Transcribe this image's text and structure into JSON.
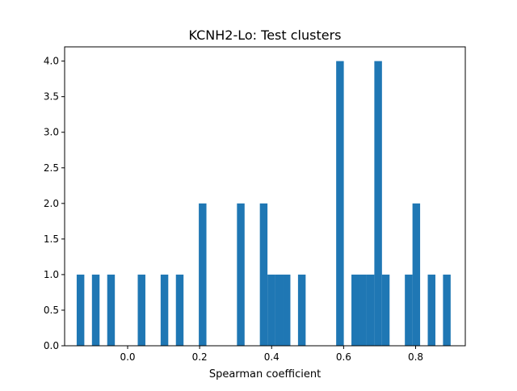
{
  "chart_data": {
    "type": "bar",
    "title": "KCNH2-Lo: Test clusters",
    "xlabel": "Spearman coefficient",
    "ylabel": "",
    "xlim": [
      -0.175,
      0.938
    ],
    "ylim": [
      0,
      4.2
    ],
    "xticks": [
      0.0,
      0.2,
      0.4,
      0.6,
      0.8
    ],
    "xtick_labels": [
      "0.0",
      "0.2",
      "0.4",
      "0.6",
      "0.8"
    ],
    "yticks": [
      0.0,
      0.5,
      1.0,
      1.5,
      2.0,
      2.5,
      3.0,
      3.5,
      4.0
    ],
    "ytick_labels": [
      "0.0",
      "0.5",
      "1.0",
      "1.5",
      "2.0",
      "2.5",
      "3.0",
      "3.5",
      "4.0"
    ],
    "bar_width": 0.0212,
    "bin_left_edges": [
      -0.1415,
      -0.0991,
      -0.0567,
      0.0281,
      0.0917,
      0.1341,
      0.1977,
      0.3037,
      0.3673,
      0.3885,
      0.4097,
      0.4309,
      0.4733,
      0.5793,
      0.6217,
      0.6429,
      0.6641,
      0.6853,
      0.7065,
      0.7701,
      0.7913,
      0.8337,
      0.8761
    ],
    "values": [
      1,
      1,
      1,
      1,
      1,
      1,
      2,
      2,
      2,
      1,
      1,
      1,
      1,
      4,
      1,
      1,
      1,
      4,
      1,
      1,
      2,
      1,
      1
    ],
    "bar_color": "#1f77b4",
    "grid": false,
    "legend": "none"
  }
}
